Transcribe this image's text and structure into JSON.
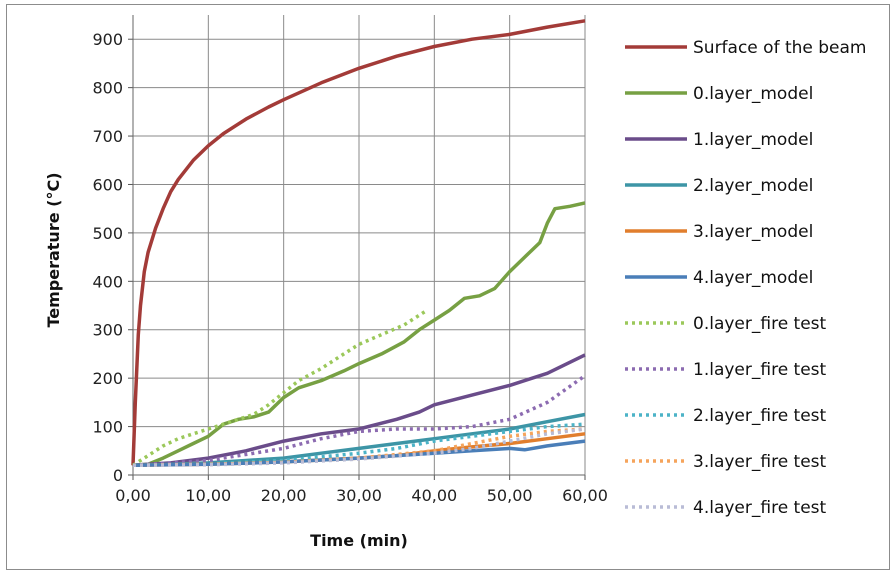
{
  "chart_data": {
    "type": "line",
    "title": "",
    "xlabel": "Time (min)",
    "ylabel": "Temperature (°C)",
    "xlim": [
      0,
      60
    ],
    "ylim": [
      0,
      950
    ],
    "x_ticks": [
      0,
      10,
      20,
      30,
      40,
      50,
      60
    ],
    "x_tick_labels": [
      "0,00",
      "10,00",
      "20,00",
      "30,00",
      "40,00",
      "50,00",
      "60,00"
    ],
    "y_ticks": [
      0,
      100,
      200,
      300,
      400,
      500,
      600,
      700,
      800,
      900
    ],
    "y_tick_labels": [
      "0",
      "100",
      "200",
      "300",
      "400",
      "500",
      "600",
      "700",
      "800",
      "900"
    ],
    "grid": true,
    "legend_position": "right",
    "series": [
      {
        "name": "Surface of the beam",
        "color": "#a33b38",
        "dash": false,
        "points": [
          [
            0,
            20
          ],
          [
            0.3,
            150
          ],
          [
            0.7,
            290
          ],
          [
            1,
            350
          ],
          [
            1.5,
            420
          ],
          [
            2,
            460
          ],
          [
            3,
            510
          ],
          [
            4,
            550
          ],
          [
            5,
            585
          ],
          [
            6,
            610
          ],
          [
            8,
            650
          ],
          [
            10,
            680
          ],
          [
            12,
            705
          ],
          [
            15,
            735
          ],
          [
            18,
            760
          ],
          [
            20,
            775
          ],
          [
            25,
            810
          ],
          [
            30,
            840
          ],
          [
            35,
            865
          ],
          [
            40,
            885
          ],
          [
            45,
            900
          ],
          [
            50,
            910
          ],
          [
            55,
            925
          ],
          [
            60,
            938
          ]
        ]
      },
      {
        "name": "0.layer_model",
        "color": "#77a043",
        "dash": false,
        "points": [
          [
            0,
            20
          ],
          [
            2,
            22
          ],
          [
            4,
            35
          ],
          [
            6,
            50
          ],
          [
            8,
            65
          ],
          [
            10,
            80
          ],
          [
            12,
            105
          ],
          [
            14,
            115
          ],
          [
            16,
            120
          ],
          [
            18,
            130
          ],
          [
            20,
            160
          ],
          [
            22,
            180
          ],
          [
            25,
            195
          ],
          [
            28,
            215
          ],
          [
            30,
            230
          ],
          [
            33,
            250
          ],
          [
            36,
            275
          ],
          [
            38,
            300
          ],
          [
            40,
            320
          ],
          [
            42,
            340
          ],
          [
            44,
            365
          ],
          [
            46,
            370
          ],
          [
            48,
            385
          ],
          [
            50,
            420
          ],
          [
            52,
            450
          ],
          [
            54,
            480
          ],
          [
            55,
            520
          ],
          [
            56,
            550
          ],
          [
            58,
            555
          ],
          [
            60,
            562
          ]
        ]
      },
      {
        "name": "1.layer_model",
        "color": "#6a4c8a",
        "dash": false,
        "points": [
          [
            0,
            20
          ],
          [
            5,
            25
          ],
          [
            10,
            35
          ],
          [
            15,
            50
          ],
          [
            20,
            70
          ],
          [
            25,
            85
          ],
          [
            30,
            95
          ],
          [
            35,
            115
          ],
          [
            38,
            130
          ],
          [
            40,
            145
          ],
          [
            45,
            165
          ],
          [
            50,
            185
          ],
          [
            55,
            210
          ],
          [
            60,
            248
          ]
        ]
      },
      {
        "name": "2.layer_model",
        "color": "#3d95a6",
        "dash": false,
        "points": [
          [
            0,
            20
          ],
          [
            5,
            22
          ],
          [
            10,
            25
          ],
          [
            15,
            30
          ],
          [
            20,
            35
          ],
          [
            25,
            45
          ],
          [
            30,
            55
          ],
          [
            35,
            65
          ],
          [
            40,
            75
          ],
          [
            45,
            85
          ],
          [
            50,
            95
          ],
          [
            55,
            110
          ],
          [
            60,
            125
          ]
        ]
      },
      {
        "name": "3.layer_model",
        "color": "#e17e2d",
        "dash": false,
        "points": [
          [
            0,
            20
          ],
          [
            10,
            22
          ],
          [
            20,
            27
          ],
          [
            30,
            35
          ],
          [
            35,
            40
          ],
          [
            40,
            50
          ],
          [
            45,
            58
          ],
          [
            50,
            65
          ],
          [
            55,
            75
          ],
          [
            60,
            85
          ]
        ]
      },
      {
        "name": "4.layer_model",
        "color": "#4a7eb8",
        "dash": false,
        "points": [
          [
            0,
            20
          ],
          [
            10,
            22
          ],
          [
            20,
            27
          ],
          [
            30,
            35
          ],
          [
            40,
            45
          ],
          [
            45,
            50
          ],
          [
            50,
            55
          ],
          [
            52,
            52
          ],
          [
            55,
            60
          ],
          [
            60,
            70
          ]
        ]
      },
      {
        "name": "0.layer_fire test",
        "color": "#9bc85a",
        "dash": true,
        "points": [
          [
            0,
            20
          ],
          [
            2,
            40
          ],
          [
            4,
            60
          ],
          [
            6,
            75
          ],
          [
            8,
            85
          ],
          [
            10,
            95
          ],
          [
            12,
            105
          ],
          [
            14,
            115
          ],
          [
            16,
            125
          ],
          [
            18,
            145
          ],
          [
            20,
            170
          ],
          [
            22,
            195
          ],
          [
            25,
            220
          ],
          [
            28,
            250
          ],
          [
            30,
            270
          ],
          [
            33,
            290
          ],
          [
            36,
            310
          ],
          [
            39,
            340
          ]
        ]
      },
      {
        "name": "1.layer_fire test",
        "color": "#8c6bb1",
        "dash": true,
        "points": [
          [
            0,
            20
          ],
          [
            10,
            30
          ],
          [
            20,
            55
          ],
          [
            25,
            75
          ],
          [
            30,
            90
          ],
          [
            35,
            95
          ],
          [
            40,
            95
          ],
          [
            45,
            100
          ],
          [
            50,
            115
          ],
          [
            55,
            150
          ],
          [
            60,
            205
          ]
        ]
      },
      {
        "name": "2.layer_fire test",
        "color": "#4cb3c7",
        "dash": true,
        "points": [
          [
            0,
            20
          ],
          [
            10,
            23
          ],
          [
            20,
            30
          ],
          [
            30,
            45
          ],
          [
            35,
            55
          ],
          [
            40,
            70
          ],
          [
            45,
            80
          ],
          [
            50,
            90
          ],
          [
            55,
            100
          ],
          [
            60,
            105
          ]
        ]
      },
      {
        "name": "3.layer_fire test",
        "color": "#f5a45c",
        "dash": true,
        "points": [
          [
            0,
            20
          ],
          [
            10,
            22
          ],
          [
            20,
            26
          ],
          [
            30,
            35
          ],
          [
            40,
            50
          ],
          [
            45,
            65
          ],
          [
            50,
            80
          ],
          [
            55,
            90
          ],
          [
            60,
            95
          ]
        ]
      },
      {
        "name": "4.layer_fire test",
        "color": "#b9bcd6",
        "dash": true,
        "points": [
          [
            0,
            20
          ],
          [
            10,
            21
          ],
          [
            20,
            25
          ],
          [
            30,
            33
          ],
          [
            40,
            45
          ],
          [
            45,
            55
          ],
          [
            50,
            70
          ],
          [
            55,
            85
          ],
          [
            60,
            95
          ]
        ]
      }
    ]
  }
}
